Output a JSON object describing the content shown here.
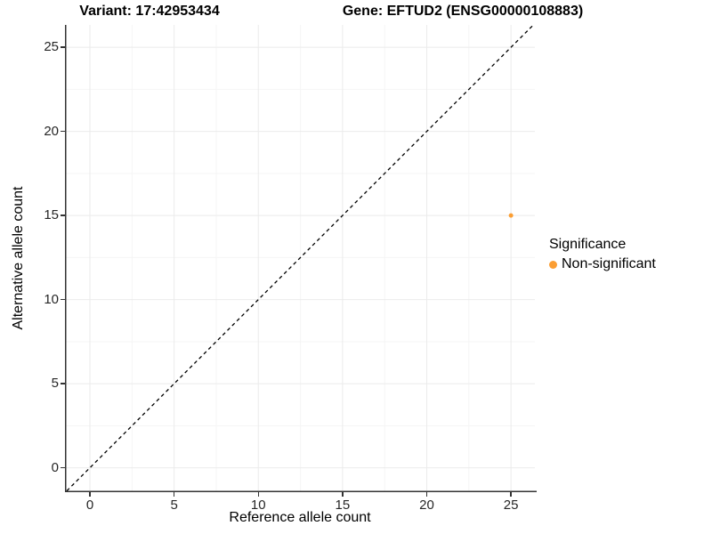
{
  "chart_data": {
    "type": "scatter",
    "titles": {
      "left": "Variant: 17:42953434",
      "right": "Gene: EFTUD2 (ENSG00000108883)"
    },
    "xlabel": "Reference allele count",
    "ylabel": "Alternative allele count",
    "x_ticks": [
      0,
      5,
      10,
      15,
      20,
      25
    ],
    "y_ticks": [
      0,
      5,
      10,
      15,
      20,
      25
    ],
    "x_minor_ticks": [
      2.5,
      7.5,
      12.5,
      17.5,
      22.5
    ],
    "y_minor_ticks": [
      2.5,
      7.5,
      12.5,
      17.5,
      22.5
    ],
    "xlim": [
      -1.48,
      26.42
    ],
    "ylim": [
      -1.37,
      26.33
    ],
    "grid": "on",
    "identity_line": {
      "style": "dashed",
      "slope": 1,
      "intercept": 0,
      "color": "#000000"
    },
    "series": [
      {
        "name": "Non-significant",
        "color": "#FB9E33",
        "points": [
          {
            "x": 25,
            "y": 15
          }
        ]
      }
    ],
    "legend": {
      "position": "right",
      "title": "Significance",
      "entries": [
        {
          "label": "Non-significant",
          "color": "#FB9E33"
        }
      ]
    },
    "style": {
      "grid_major_color": "#EBEBEB",
      "grid_minor_color": "#F5F5F5",
      "axis_color": "#333333",
      "point_radius": 2.5,
      "background": "#FFFFFF"
    }
  }
}
